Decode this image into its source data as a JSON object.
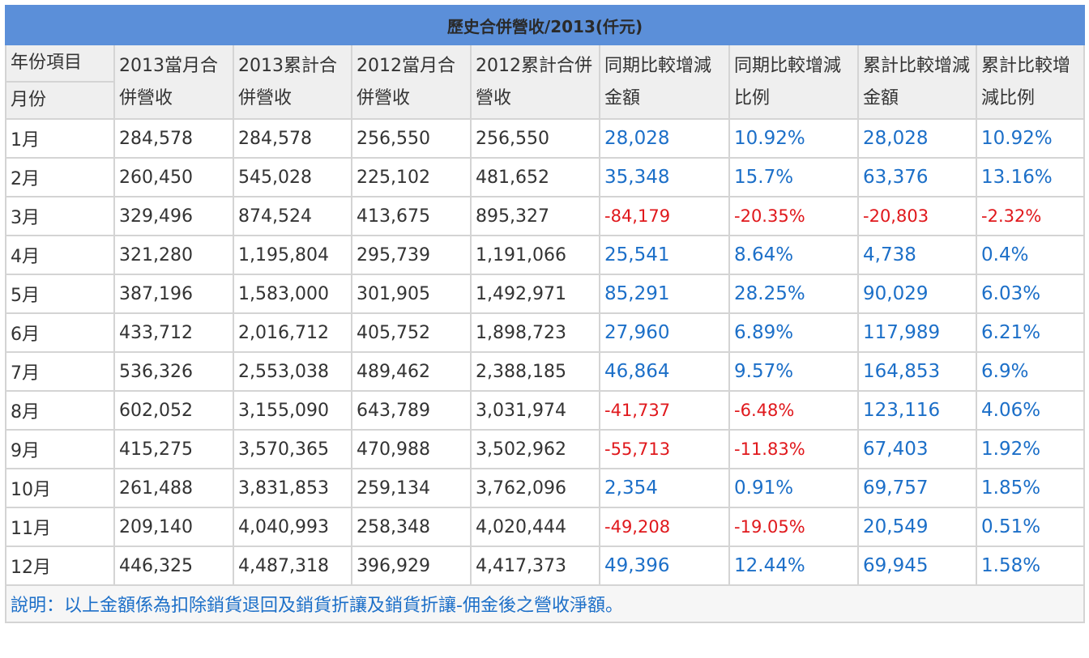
{
  "title": "歷史合併營收/2013(仟元)",
  "headers": {
    "corner_top": "年份項目",
    "corner_bottom": "月份",
    "columns": [
      "2013當月合併營收",
      "2013累計合併營收",
      "2012當月合併營收",
      "2012累計合併營收",
      "同期比較增減金額",
      "同期比較增減比例",
      "累計比較增減金額",
      "累計比較增減比例"
    ]
  },
  "rows": [
    {
      "month": "1月",
      "c1": "284,578",
      "c2": "284,578",
      "c3": "256,550",
      "c4": "256,550",
      "c5": "28,028",
      "c6": "10.92%",
      "c7": "28,028",
      "c8": "10.92%"
    },
    {
      "month": "2月",
      "c1": "260,450",
      "c2": "545,028",
      "c3": "225,102",
      "c4": "481,652",
      "c5": "35,348",
      "c6": "15.7%",
      "c7": "63,376",
      "c8": "13.16%"
    },
    {
      "month": "3月",
      "c1": "329,496",
      "c2": "874,524",
      "c3": "413,675",
      "c4": "895,327",
      "c5": "-84,179",
      "c6": "-20.35%",
      "c7": "-20,803",
      "c8": "-2.32%"
    },
    {
      "month": "4月",
      "c1": "321,280",
      "c2": "1,195,804",
      "c3": "295,739",
      "c4": "1,191,066",
      "c5": "25,541",
      "c6": "8.64%",
      "c7": "4,738",
      "c8": "0.4%"
    },
    {
      "month": "5月",
      "c1": "387,196",
      "c2": "1,583,000",
      "c3": "301,905",
      "c4": "1,492,971",
      "c5": "85,291",
      "c6": "28.25%",
      "c7": "90,029",
      "c8": "6.03%"
    },
    {
      "month": "6月",
      "c1": "433,712",
      "c2": "2,016,712",
      "c3": "405,752",
      "c4": "1,898,723",
      "c5": "27,960",
      "c6": "6.89%",
      "c7": "117,989",
      "c8": "6.21%"
    },
    {
      "month": "7月",
      "c1": "536,326",
      "c2": "2,553,038",
      "c3": "489,462",
      "c4": "2,388,185",
      "c5": "46,864",
      "c6": "9.57%",
      "c7": "164,853",
      "c8": "6.9%"
    },
    {
      "month": "8月",
      "c1": "602,052",
      "c2": "3,155,090",
      "c3": "643,789",
      "c4": "3,031,974",
      "c5": "-41,737",
      "c6": "-6.48%",
      "c7": "123,116",
      "c8": "4.06%"
    },
    {
      "month": "9月",
      "c1": "415,275",
      "c2": "3,570,365",
      "c3": "470,988",
      "c4": "3,502,962",
      "c5": "-55,713",
      "c6": "-11.83%",
      "c7": "67,403",
      "c8": "1.92%"
    },
    {
      "month": "10月",
      "c1": "261,488",
      "c2": "3,831,853",
      "c3": "259,134",
      "c4": "3,762,096",
      "c5": "2,354",
      "c6": "0.91%",
      "c7": "69,757",
      "c8": "1.85%"
    },
    {
      "month": "11月",
      "c1": "209,140",
      "c2": "4,040,993",
      "c3": "258,348",
      "c4": "4,020,444",
      "c5": "-49,208",
      "c6": "-19.05%",
      "c7": "20,549",
      "c8": "0.51%"
    },
    {
      "month": "12月",
      "c1": "446,325",
      "c2": "4,487,318",
      "c3": "396,929",
      "c4": "4,417,373",
      "c5": "49,396",
      "c6": "12.44%",
      "c7": "69,945",
      "c8": "1.58%"
    }
  ],
  "note": "說明：以上金額係為扣除銷貨退回及銷貨折讓及銷貨折讓-佣金後之營收淨額。",
  "colors": {
    "title_bg": "#5b8fd9",
    "positive": "#1c6fc8",
    "negative": "#e0181c"
  }
}
